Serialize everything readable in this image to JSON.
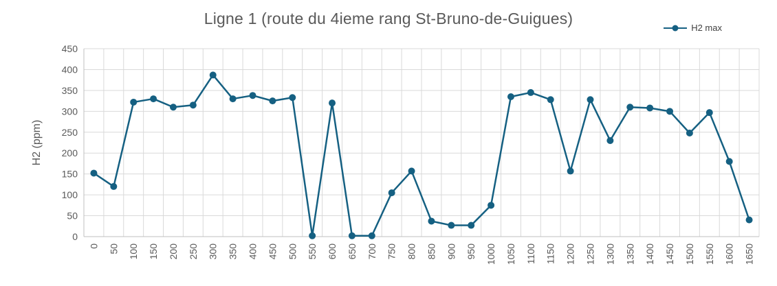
{
  "chart_data": {
    "type": "line",
    "title": "Ligne 1 (route du 4ieme rang St-Bruno-de-Guigues)",
    "xlabel": "",
    "ylabel": "H2 (ppm)",
    "legend_position": "top-right",
    "grid": true,
    "marker": "circle",
    "ylim": [
      0,
      450
    ],
    "ytick_step": 50,
    "categories": [
      "0",
      "50",
      "100",
      "150",
      "200",
      "250",
      "300",
      "350",
      "400",
      "450",
      "500",
      "550",
      "600",
      "650",
      "700",
      "750",
      "800",
      "850",
      "900",
      "950",
      "1000",
      "1050",
      "1100",
      "1150",
      "1200",
      "1250",
      "1300",
      "1350",
      "1400",
      "1450",
      "1500",
      "1550",
      "1600",
      "1650"
    ],
    "series": [
      {
        "name": "H2 max",
        "values": [
          152,
          120,
          322,
          330,
          310,
          315,
          387,
          330,
          338,
          325,
          333,
          2,
          320,
          2,
          2,
          105,
          157,
          37,
          27,
          27,
          75,
          335,
          345,
          328,
          157,
          328,
          230,
          310,
          308,
          300,
          248,
          297,
          180,
          40
        ]
      }
    ],
    "colors": {
      "line": "#156082",
      "grid": "#d9d9d9",
      "axis": "#bfbfbf",
      "text": "#595959",
      "title": "#595959"
    }
  }
}
